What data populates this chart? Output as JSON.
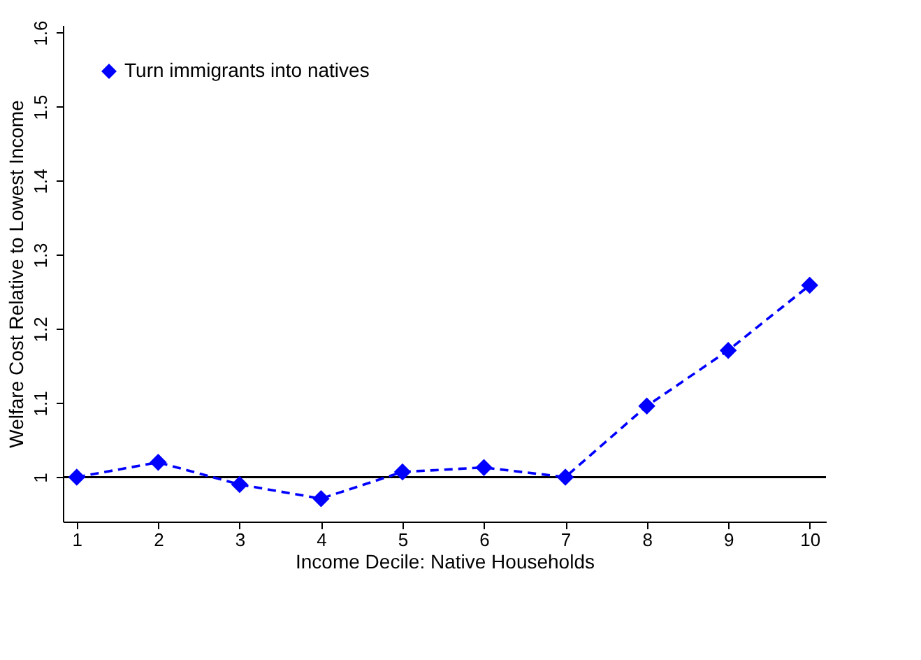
{
  "chart_data": {
    "type": "line",
    "xlabel": "Income Decile: Native Households",
    "ylabel": "Welfare Cost Relative to Lowest Income",
    "x": [
      1,
      2,
      3,
      4,
      5,
      6,
      7,
      8,
      9,
      10
    ],
    "series": [
      {
        "name": "Turn immigrants into natives",
        "color": "#0000ff",
        "values": [
          1.0,
          1.02,
          0.99,
          0.971,
          1.007,
          1.013,
          1.0,
          1.096,
          1.171,
          1.259
        ]
      }
    ],
    "xlim": [
      0.83,
      10.2
    ],
    "xticks": [
      1,
      2,
      3,
      4,
      5,
      6,
      7,
      8,
      9,
      10
    ],
    "ylim": [
      0.94,
      1.61
    ],
    "yticks": [
      1,
      1.1,
      1.2,
      1.3,
      1.4,
      1.5,
      1.6
    ],
    "ref_lines": [
      {
        "axis": "y",
        "value": 1,
        "color": "#000000"
      }
    ],
    "grid": false,
    "legend": "top left",
    "marker": "diamond",
    "line_style": "dashed"
  }
}
